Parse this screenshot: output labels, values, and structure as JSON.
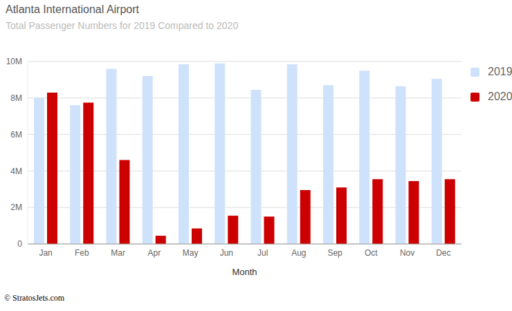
{
  "chart_data": {
    "type": "bar",
    "title": "Atlanta International Airport",
    "subtitle": "Total Passenger Numbers for 2019 Compared to 2020",
    "x_label": "Month",
    "annotations": [
      "© StratosJets.com"
    ],
    "categories": [
      "Jan",
      "Feb",
      "Mar",
      "Apr",
      "May",
      "Jun",
      "Jul",
      "Aug",
      "Sep",
      "Oct",
      "Nov",
      "Dec"
    ],
    "series": [
      {
        "name": "2019",
        "color": "#cfe2fb",
        "values": [
          8.0,
          7.6,
          9.6,
          9.2,
          9.85,
          9.9,
          8.45,
          9.85,
          8.7,
          9.5,
          8.65,
          9.05
        ]
      },
      {
        "name": "2020",
        "color": "#cc0000",
        "values": [
          8.3,
          7.75,
          4.6,
          0.45,
          0.85,
          1.55,
          1.5,
          2.95,
          3.1,
          3.55,
          3.45,
          3.55
        ]
      }
    ],
    "ylim": [
      0,
      10
    ],
    "yticks": [
      0,
      {
        "value": 2,
        "label": "2M"
      },
      {
        "value": 4,
        "label": "4M"
      },
      {
        "value": 6,
        "label": "6M"
      },
      {
        "value": 8,
        "label": "8M"
      },
      {
        "value": 10,
        "label": "10M"
      }
    ],
    "grid": true,
    "legend": "upper right"
  }
}
